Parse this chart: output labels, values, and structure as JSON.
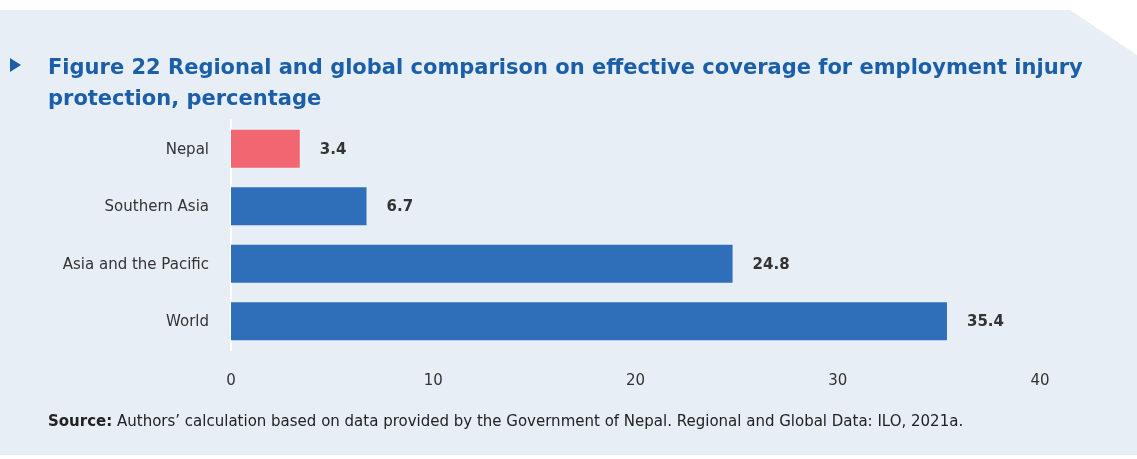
{
  "chart_data": {
    "type": "bar",
    "orientation": "horizontal",
    "title": "Figure 22 Regional and global comparison on effective coverage for employment injury protection, percentage",
    "categories": [
      "Nepal",
      "Southern Asia",
      "Asia and the Pacific",
      "World"
    ],
    "values": [
      3.4,
      6.7,
      24.8,
      35.4
    ],
    "colors": [
      "#f26672",
      "#2f6eb8",
      "#2f6eb8",
      "#2f6eb8"
    ],
    "xlim": [
      0,
      40
    ],
    "xticks": [
      0,
      10,
      20,
      30,
      40
    ],
    "grid": false,
    "data_labels": true,
    "annotations": [
      "Source: Authors’ calculation based on data provided by the Government of Nepal. Regional and Global Data: ILO, 2021a."
    ]
  }
}
